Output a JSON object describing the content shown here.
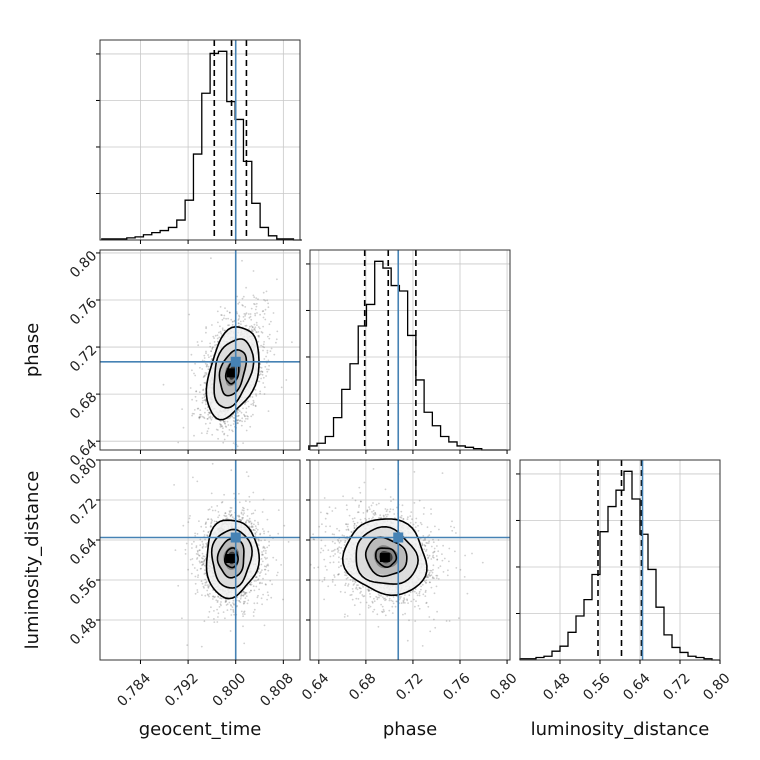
{
  "chart_data": {
    "type": "corner",
    "parameters": [
      "geocent_time",
      "phase",
      "luminosity_distance"
    ],
    "truths": {
      "geocent_time": 0.8,
      "phase": 0.7075,
      "luminosity_distance": 0.645
    },
    "quantiles": {
      "geocent_time": [
        0.7964,
        0.7993,
        0.8018
      ],
      "phase": [
        0.679,
        0.699,
        0.7225
      ],
      "luminosity_distance": [
        0.556,
        0.603,
        0.643
      ]
    },
    "axes": {
      "geocent_time": {
        "range": [
          0.7772,
          0.8108
        ],
        "ticks": [
          "0.784",
          "0.792",
          "0.800",
          "0.808"
        ]
      },
      "phase": {
        "range": [
          0.6325,
          0.8025
        ],
        "ticks": [
          "0.64",
          "0.68",
          "0.72",
          "0.76",
          "0.80"
        ]
      },
      "luminosity_distance": {
        "range": [
          0.4,
          0.8
        ],
        "ticks": [
          "0.48",
          "0.56",
          "0.64",
          "0.72",
          "0.80"
        ]
      }
    },
    "xlabels": [
      "geocent_time",
      "phase",
      "luminosity_distance"
    ],
    "ylabels": [
      "",
      "phase",
      "luminosity_distance"
    ],
    "hist_geocent_time": {
      "centers": [
        0.7782,
        0.7796,
        0.781,
        0.7824,
        0.7838,
        0.7852,
        0.7866,
        0.788,
        0.7894,
        0.7908,
        0.7922,
        0.7936,
        0.795,
        0.7964,
        0.7978,
        0.7992,
        0.8006,
        0.802,
        0.8034,
        0.8048,
        0.8062,
        0.8076,
        0.809,
        0.8104
      ],
      "counts": [
        1,
        1,
        1,
        2,
        3,
        5,
        7,
        9,
        12,
        19,
        38,
        82,
        140,
        178,
        180,
        132,
        115,
        75,
        35,
        12,
        4,
        1,
        1,
        0
      ]
    },
    "hist_phase": {
      "centers": [
        0.635,
        0.642,
        0.649,
        0.656,
        0.663,
        0.67,
        0.677,
        0.684,
        0.691,
        0.698,
        0.705,
        0.712,
        0.719,
        0.726,
        0.733,
        0.74,
        0.747,
        0.754,
        0.761,
        0.768,
        0.775,
        0.782,
        0.789,
        0.796
      ],
      "counts": [
        3,
        5,
        10,
        24,
        45,
        64,
        92,
        108,
        140,
        135,
        122,
        118,
        85,
        52,
        28,
        18,
        10,
        6,
        3,
        2,
        1,
        0,
        0,
        0
      ]
    },
    "hist_luminosity_distance": {
      "centers": [
        0.408,
        0.424,
        0.44,
        0.456,
        0.472,
        0.488,
        0.504,
        0.52,
        0.536,
        0.552,
        0.568,
        0.584,
        0.6,
        0.616,
        0.632,
        0.648,
        0.664,
        0.68,
        0.696,
        0.712,
        0.728,
        0.744,
        0.76,
        0.776,
        0.792
      ],
      "counts": [
        1,
        1,
        2,
        3,
        7,
        11,
        22,
        35,
        48,
        68,
        102,
        122,
        135,
        150,
        128,
        100,
        72,
        42,
        20,
        10,
        6,
        3,
        2,
        1,
        0
      ]
    },
    "contours_2d": {
      "geocent_time|phase": {
        "center": [
          0.7995,
          0.6985
        ],
        "sigma": [
          0.0022,
          0.0195
        ],
        "rho": 0.35
      },
      "geocent_time|luminosity_distance": {
        "center": [
          0.7993,
          0.604
        ],
        "sigma": [
          0.0022,
          0.039
        ],
        "rho": 0.05
      },
      "phase|luminosity_distance": {
        "center": [
          0.697,
          0.606
        ],
        "sigma": [
          0.0175,
          0.038
        ],
        "rho": -0.1
      }
    }
  }
}
